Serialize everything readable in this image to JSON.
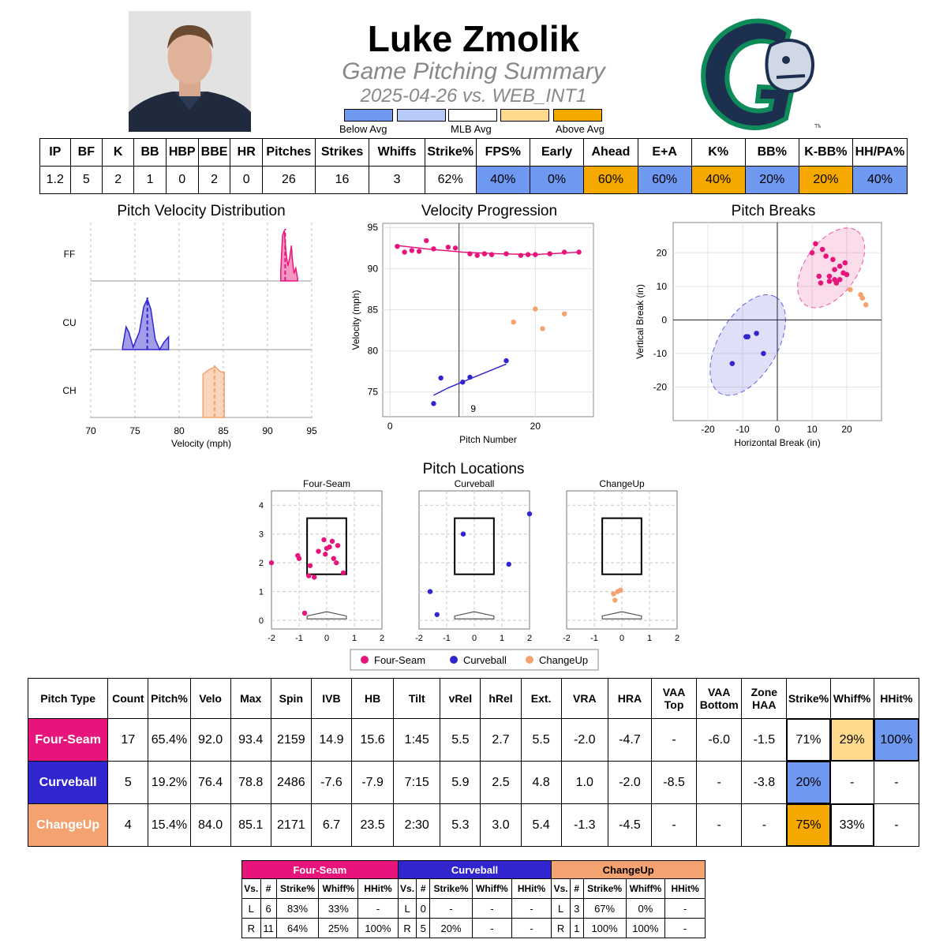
{
  "header": {
    "player_name": "Luke Zmolik",
    "subtitle": "Game Pitching Summary",
    "game_line": "2025-04-26 vs. WEB_INT1"
  },
  "legend": {
    "below": "Below Avg",
    "mlb": "MLB Avg",
    "above": "Above Avg",
    "colors": [
      "#6f98f0",
      "#b7c9f7",
      "#ffffff",
      "#ffd98c",
      "#f5a800"
    ]
  },
  "summary_stats": {
    "headers": [
      "IP",
      "BF",
      "K",
      "BB",
      "HBP",
      "BBE",
      "HR",
      "Pitches",
      "Strikes",
      "Whiffs",
      "Strike%",
      "FPS%",
      "Early",
      "Ahead",
      "E+A",
      "K%",
      "BB%",
      "K-BB%",
      "HH/PA%"
    ],
    "values": [
      "1.2",
      "5",
      "2",
      "1",
      "0",
      "2",
      "0",
      "26",
      "16",
      "3",
      "62%",
      "40%",
      "0%",
      "60%",
      "60%",
      "40%",
      "20%",
      "20%",
      "40%"
    ],
    "colors": [
      "#ffffff",
      "#ffffff",
      "#ffffff",
      "#ffffff",
      "#ffffff",
      "#ffffff",
      "#ffffff",
      "#ffffff",
      "#ffffff",
      "#ffffff",
      "#ffffff",
      "#6f98f0",
      "#6f98f0",
      "#f5a800",
      "#6f98f0",
      "#f5a800",
      "#6f98f0",
      "#f5a800",
      "#6f98f0"
    ]
  },
  "pitch_colors": {
    "FF": "#e7157b",
    "CU": "#3125cf",
    "CH": "#f4a26f"
  },
  "chart_data": [
    {
      "type": "area",
      "title": "Pitch Velocity Distribution",
      "xlabel": "Velocity (mph)",
      "xlim": [
        70,
        95
      ],
      "xticks": [
        70,
        75,
        80,
        85,
        90,
        95
      ],
      "series": [
        {
          "name": "FF",
          "range": [
            91.5,
            93.4
          ],
          "median": 92.0,
          "density": [
            [
              91.5,
              0.2
            ],
            [
              91.7,
              0.9
            ],
            [
              91.9,
              1.0
            ],
            [
              92.1,
              0.55
            ],
            [
              92.3,
              0.3
            ],
            [
              92.5,
              0.45
            ],
            [
              92.7,
              0.7
            ],
            [
              92.8,
              0.45
            ],
            [
              93.0,
              0.15
            ],
            [
              93.2,
              0.25
            ],
            [
              93.4,
              0.05
            ]
          ]
        },
        {
          "name": "CU",
          "range": [
            73.6,
            78.8
          ],
          "median": 76.4,
          "density": [
            [
              73.6,
              0.05
            ],
            [
              74.0,
              0.45
            ],
            [
              74.3,
              0.35
            ],
            [
              74.8,
              0.05
            ],
            [
              75.5,
              0.35
            ],
            [
              76.0,
              0.85
            ],
            [
              76.4,
              1.0
            ],
            [
              76.8,
              0.8
            ],
            [
              77.3,
              0.2
            ],
            [
              77.8,
              0.0
            ],
            [
              78.3,
              0.15
            ],
            [
              78.8,
              0.25
            ]
          ]
        },
        {
          "name": "CH",
          "range": [
            82.7,
            85.1
          ],
          "median": 84.0,
          "density": [
            [
              82.7,
              0.85
            ],
            [
              83.0,
              0.9
            ],
            [
              83.4,
              0.95
            ],
            [
              83.8,
              0.98
            ],
            [
              84.1,
              1.0
            ],
            [
              84.4,
              0.95
            ],
            [
              84.7,
              0.9
            ],
            [
              85.1,
              0.9
            ]
          ]
        }
      ]
    },
    {
      "type": "scatter",
      "title": "Velocity Progression",
      "xlabel": "Pitch Number",
      "ylabel": "Velocity (mph)",
      "xlim": [
        -1,
        28
      ],
      "ylim": [
        72,
        95.5
      ],
      "xticks": [
        0,
        20
      ],
      "yticks": [
        75,
        80,
        85,
        90,
        95
      ],
      "inning_marker": {
        "x": 9.5,
        "label": "9"
      },
      "series": [
        {
          "name": "Four-Seam",
          "points": [
            [
              1,
              92.7
            ],
            [
              2,
              92.0
            ],
            [
              3,
              92.2
            ],
            [
              4,
              92.1
            ],
            [
              5,
              93.4
            ],
            [
              6,
              92.4
            ],
            [
              8,
              92.6
            ],
            [
              9,
              92.5
            ],
            [
              11,
              91.8
            ],
            [
              12,
              91.6
            ],
            [
              13,
              91.8
            ],
            [
              14,
              91.7
            ],
            [
              16,
              91.8
            ],
            [
              18,
              91.6
            ],
            [
              19,
              91.7
            ],
            [
              20,
              91.7
            ],
            [
              22,
              91.8
            ],
            [
              24,
              92.0
            ],
            [
              26,
              92.0
            ]
          ],
          "trend": [
            [
              1,
              92.8
            ],
            [
              5,
              92.4
            ],
            [
              10,
              92.0
            ],
            [
              15,
              91.8
            ],
            [
              20,
              91.7
            ],
            [
              26,
              92.0
            ]
          ]
        },
        {
          "name": "Curveball",
          "points": [
            [
              6,
              73.6
            ],
            [
              7,
              76.7
            ],
            [
              10,
              76.2
            ],
            [
              11,
              76.8
            ],
            [
              16,
              78.8
            ]
          ],
          "trend": [
            [
              6,
              74.6
            ],
            [
              8,
              75.5
            ],
            [
              11,
              76.6
            ],
            [
              16,
              78.4
            ]
          ]
        },
        {
          "name": "ChangeUp",
          "points": [
            [
              17,
              83.5
            ],
            [
              20,
              85.1
            ],
            [
              21,
              82.7
            ],
            [
              24,
              84.5
            ]
          ]
        }
      ]
    },
    {
      "type": "scatter",
      "title": "Pitch Breaks",
      "xlabel": "Horizontal Break (in)",
      "ylabel": "Vertical Break (in)",
      "xlim": [
        -30,
        30
      ],
      "ylim": [
        -30,
        29
      ],
      "xticks": [
        -20,
        -10,
        0,
        10,
        20
      ],
      "yticks": [
        -20,
        -10,
        0,
        10,
        20
      ],
      "series": [
        {
          "name": "Four-Seam",
          "points": [
            [
              10,
              20
            ],
            [
              11,
              22.7
            ],
            [
              12,
              13
            ],
            [
              12.5,
              11
            ],
            [
              13,
              21
            ],
            [
              14,
              19
            ],
            [
              15,
              13
            ],
            [
              15,
              11.5
            ],
            [
              16,
              18
            ],
            [
              16.5,
              15
            ],
            [
              16.5,
              12
            ],
            [
              17,
              11
            ],
            [
              18,
              12
            ],
            [
              18,
              16
            ],
            [
              19,
              14
            ],
            [
              19.5,
              17
            ],
            [
              20,
              13.5
            ]
          ],
          "ellipse": {
            "cx": 15.5,
            "cy": 15.5,
            "rx": 13,
            "ry": 7.5,
            "angle": -55
          }
        },
        {
          "name": "Curveball",
          "points": [
            [
              -13,
              -13
            ],
            [
              -9,
              -5
            ],
            [
              -8.5,
              -5
            ],
            [
              -6,
              -4
            ],
            [
              -4,
              -10
            ]
          ],
          "ellipse": {
            "cx": -8.5,
            "cy": -7.5,
            "rx": 16,
            "ry": 8.5,
            "angle": -60
          }
        },
        {
          "name": "ChangeUp",
          "points": [
            [
              21,
              9
            ],
            [
              24,
              7.5
            ],
            [
              24.5,
              6.5
            ],
            [
              25.5,
              4.5
            ]
          ]
        }
      ]
    },
    {
      "type": "scatter",
      "title": "Pitch Locations",
      "xlim": [
        -2,
        2
      ],
      "ylim": [
        -0.3,
        4.5
      ],
      "xticks": [
        -2,
        -1,
        0,
        1,
        2
      ],
      "yticks": [
        0,
        1,
        2,
        3,
        4
      ],
      "legend": [
        "Four-Seam",
        "Curveball",
        "ChangeUp"
      ],
      "panels": [
        {
          "name": "Four-Seam",
          "points": [
            [
              -2.0,
              2.0
            ],
            [
              -1.05,
              2.25
            ],
            [
              -1.0,
              2.15
            ],
            [
              -0.8,
              0.25
            ],
            [
              -0.65,
              1.55
            ],
            [
              -0.6,
              1.9
            ],
            [
              -0.45,
              1.5
            ],
            [
              -0.3,
              2.4
            ],
            [
              -0.1,
              2.8
            ],
            [
              -0.05,
              2.3
            ],
            [
              0.0,
              2.5
            ],
            [
              0.1,
              2.55
            ],
            [
              0.2,
              2.75
            ],
            [
              0.25,
              2.15
            ],
            [
              0.35,
              2.0
            ],
            [
              0.4,
              2.6
            ],
            [
              0.6,
              1.65
            ]
          ]
        },
        {
          "name": "Curveball",
          "points": [
            [
              -1.6,
              1.0
            ],
            [
              -1.35,
              0.2
            ],
            [
              -0.4,
              3.0
            ],
            [
              1.25,
              1.95
            ],
            [
              2.0,
              3.7
            ]
          ]
        },
        {
          "name": "ChangeUp",
          "points": [
            [
              -0.25,
              0.7
            ],
            [
              -0.15,
              1.0
            ],
            [
              -0.05,
              1.05
            ],
            [
              -0.3,
              0.92
            ]
          ]
        }
      ]
    }
  ],
  "pitch_table": {
    "headers": [
      "Pitch Type",
      "Count",
      "Pitch%",
      "Velo",
      "Max",
      "Spin",
      "IVB",
      "HB",
      "Tilt",
      "vRel",
      "hRel",
      "Ext.",
      "VRA",
      "HRA",
      "VAA\nTop",
      "VAA\nBottom",
      "Zone\nHAA",
      "Strike%",
      "Whiff%",
      "HHit%"
    ],
    "rows": [
      {
        "name": "Four-Seam",
        "color": "#e7157b",
        "values": [
          "17",
          "65.4%",
          "92.0",
          "93.4",
          "2159",
          "14.9",
          "15.6",
          "1:45",
          "5.5",
          "2.7",
          "5.5",
          "-2.0",
          "-4.7",
          "-",
          "-6.0",
          "-1.5",
          "71%",
          "29%",
          "100%"
        ],
        "colors": {
          "16": "#ffffff",
          "17": "#ffd98c",
          "18": "#6f98f0"
        }
      },
      {
        "name": "Curveball",
        "color": "#3125cf",
        "values": [
          "5",
          "19.2%",
          "76.4",
          "78.8",
          "2486",
          "-7.6",
          "-7.9",
          "7:15",
          "5.9",
          "2.5",
          "4.8",
          "1.0",
          "-2.0",
          "-8.5",
          "-",
          "-3.8",
          "20%",
          "-",
          "-"
        ],
        "colors": {
          "16": "#6f98f0"
        }
      },
      {
        "name": "ChangeUp",
        "color": "#f4a26f",
        "values": [
          "4",
          "15.4%",
          "84.0",
          "85.1",
          "2171",
          "6.7",
          "23.5",
          "2:30",
          "5.3",
          "3.0",
          "5.4",
          "-1.3",
          "-4.5",
          "-",
          "-",
          "-",
          "75%",
          "33%",
          "-"
        ],
        "colors": {
          "16": "#f5a800",
          "17": "#ffffff"
        }
      }
    ]
  },
  "splits_table": {
    "groups": [
      {
        "name": "Four-Seam",
        "color": "#e7157b"
      },
      {
        "name": "Curveball",
        "color": "#3125cf"
      },
      {
        "name": "ChangeUp",
        "color": "#f4a26f"
      }
    ],
    "subheaders": [
      "Vs.",
      "#",
      "Strike%",
      "Whiff%",
      "HHit%"
    ],
    "rows": [
      [
        "L",
        "6",
        "83%",
        "33%",
        "-",
        "L",
        "0",
        "-",
        "-",
        "-",
        "L",
        "3",
        "67%",
        "0%",
        "-"
      ],
      [
        "R",
        "11",
        "64%",
        "25%",
        "100%",
        "R",
        "5",
        "20%",
        "-",
        "-",
        "R",
        "1",
        "100%",
        "100%",
        "-"
      ]
    ]
  }
}
